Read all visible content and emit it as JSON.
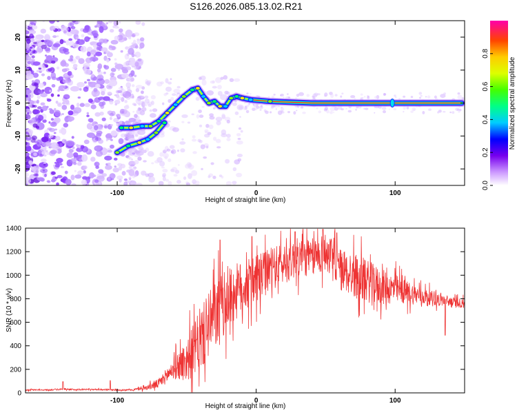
{
  "title": "S126.2026.085.13.02.R21",
  "colors": {
    "snr_line": "#ee3333",
    "scatter_purple": "#7722ee",
    "ridge_core": "#ff2222"
  },
  "chart_data": [
    {
      "name": "spectrogram",
      "type": "heatmap",
      "xlabel": "Height of straight line (km)",
      "ylabel": "Frequency (Hz)",
      "xlim": [
        -166,
        150
      ],
      "ylim": [
        -25,
        25
      ],
      "x_ticks": [
        -100,
        0,
        100
      ],
      "x_tick_labels": [
        "-100",
        "0",
        "100"
      ],
      "y_ticks": [
        -20,
        -10,
        0,
        10,
        20
      ],
      "y_tick_labels": [
        "-20",
        "-10",
        "0",
        "10",
        "20"
      ],
      "ridge": [
        {
          "x": -97,
          "y": -7.5
        },
        {
          "x": -90,
          "y": -7.5
        },
        {
          "x": -82,
          "y": -7
        },
        {
          "x": -76,
          "y": -7
        },
        {
          "x": -70,
          "y": -5.5
        },
        {
          "x": -64,
          "y": -3
        },
        {
          "x": -58,
          "y": -0.5
        },
        {
          "x": -52,
          "y": 2
        },
        {
          "x": -46,
          "y": 4
        },
        {
          "x": -42,
          "y": 4.5
        },
        {
          "x": -38,
          "y": 2
        },
        {
          "x": -34,
          "y": 0
        },
        {
          "x": -30,
          "y": 0.5
        },
        {
          "x": -26,
          "y": -1
        },
        {
          "x": -22,
          "y": -1
        },
        {
          "x": -18,
          "y": 1.5
        },
        {
          "x": -14,
          "y": 2
        },
        {
          "x": -10,
          "y": 1.5
        },
        {
          "x": -4,
          "y": 1
        },
        {
          "x": 10,
          "y": 0.5
        },
        {
          "x": 40,
          "y": 0
        },
        {
          "x": 96,
          "y": 0
        },
        {
          "x": 148,
          "y": 0
        }
      ],
      "lower_branch": [
        {
          "x": -100,
          "y": -15
        },
        {
          "x": -92,
          "y": -13
        },
        {
          "x": -84,
          "y": -12
        },
        {
          "x": -78,
          "y": -11
        },
        {
          "x": -72,
          "y": -9
        },
        {
          "x": -66,
          "y": -6
        }
      ],
      "colorbar": {
        "label": "Normalized spectral amplitude",
        "range": [
          0,
          1
        ],
        "ticks": [
          0.0,
          0.2,
          0.4,
          0.6,
          0.8
        ],
        "tick_labels": [
          "0.0",
          "0.2",
          "0.4",
          "0.6",
          "0.8"
        ]
      }
    },
    {
      "name": "snr",
      "type": "line",
      "xlabel": "Height of straight line (km)",
      "ylabel": "SNR (10 * v/v)",
      "xlim": [
        -166,
        150
      ],
      "ylim": [
        0,
        1400
      ],
      "x_ticks": [
        -100,
        0,
        100
      ],
      "x_tick_labels": [
        "-100",
        "0",
        "100"
      ],
      "y_ticks": [
        0,
        200,
        400,
        600,
        800,
        1000,
        1200,
        1400
      ],
      "y_tick_labels": [
        "0",
        "200",
        "400",
        "600",
        "800",
        "1000",
        "1200",
        "1400"
      ],
      "series": [
        {
          "name": "SNR",
          "x": [
            -166,
            -150,
            -140,
            -130,
            -120,
            -110,
            -100,
            -90,
            -80,
            -70,
            -60,
            -50,
            -40,
            -30,
            -20,
            -10,
            0,
            10,
            20,
            30,
            40,
            50,
            60,
            70,
            80,
            90,
            100,
            110,
            120,
            130,
            140,
            150
          ],
          "mean": [
            25,
            25,
            30,
            28,
            30,
            28,
            25,
            25,
            40,
            80,
            200,
            280,
            450,
            650,
            800,
            900,
            950,
            1050,
            1100,
            1150,
            1150,
            1200,
            1050,
            1000,
            950,
            900,
            880,
            850,
            820,
            800,
            770,
            760
          ],
          "amplitude": [
            8,
            8,
            10,
            8,
            8,
            8,
            8,
            8,
            25,
            60,
            120,
            260,
            380,
            420,
            380,
            320,
            300,
            260,
            250,
            240,
            230,
            240,
            260,
            280,
            260,
            220,
            180,
            140,
            100,
            80,
            70,
            50
          ],
          "spikes": [
            {
              "x": -139,
              "y": 95
            },
            {
              "x": -105,
              "y": 105
            },
            {
              "x": -26,
              "y": 1300
            },
            {
              "x": -3,
              "y": 1330
            },
            {
              "x": 28,
              "y": 1370
            },
            {
              "x": 48,
              "y": 1390
            },
            {
              "x": 58,
              "y": 1360
            },
            {
              "x": 136,
              "y": 490
            }
          ]
        }
      ]
    }
  ]
}
